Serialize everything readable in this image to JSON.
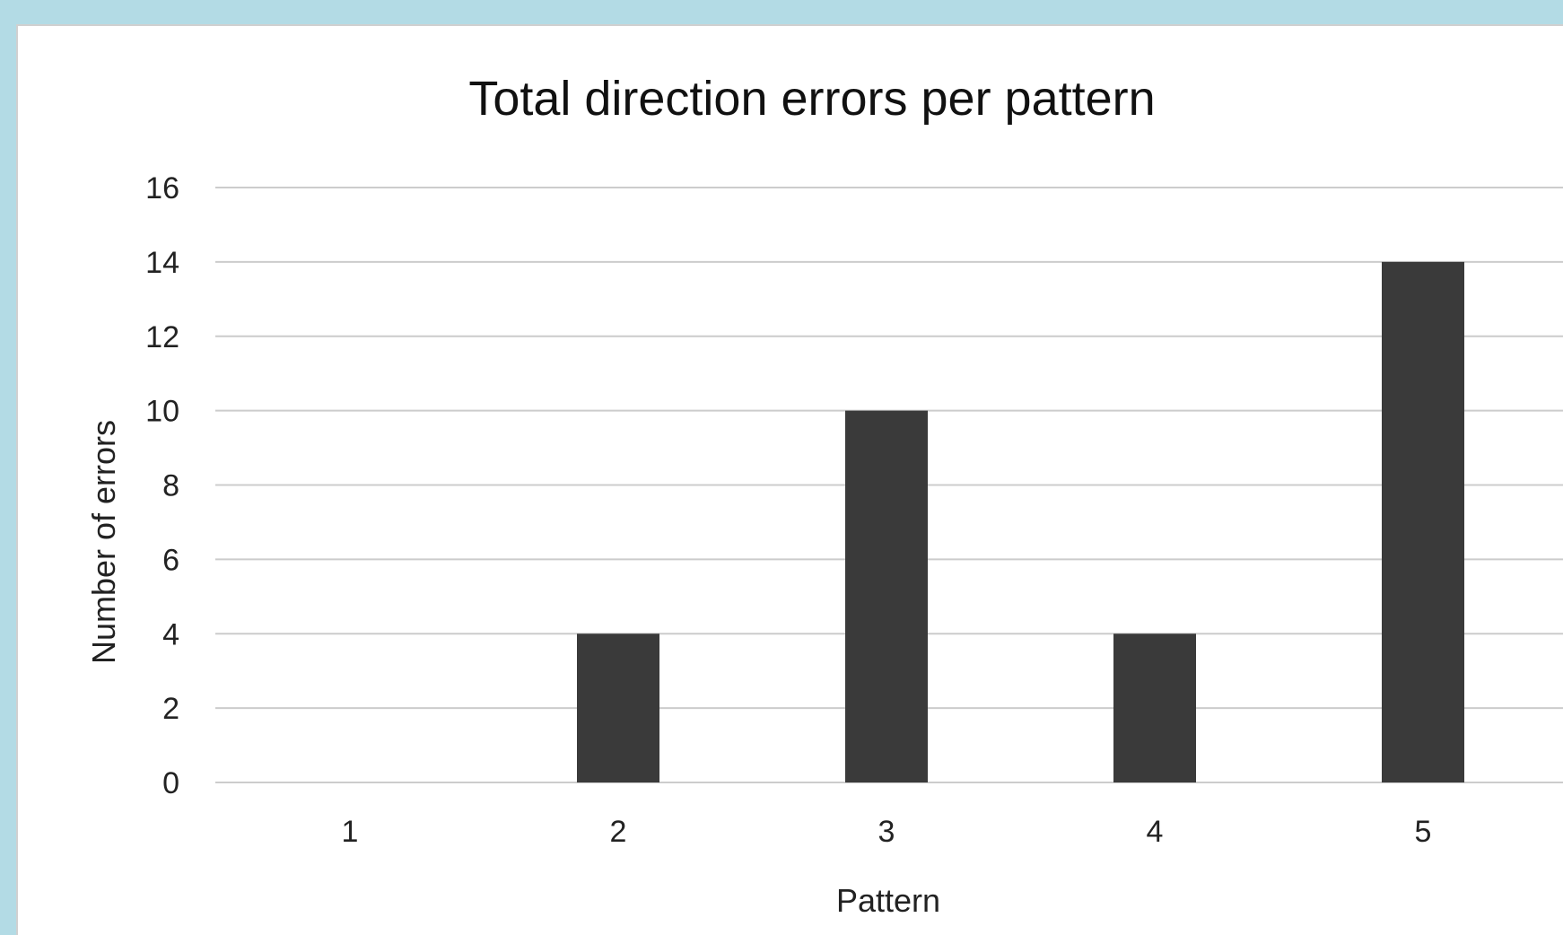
{
  "chart_data": {
    "type": "bar",
    "title": "Total direction errors per pattern",
    "xlabel": "Pattern",
    "ylabel": "Number of errors",
    "categories": [
      "1",
      "2",
      "3",
      "4",
      "5"
    ],
    "values": [
      0,
      4,
      10,
      4,
      14
    ],
    "ylim": [
      0,
      16
    ],
    "yticks": [
      0,
      2,
      4,
      6,
      8,
      10,
      12,
      14,
      16
    ],
    "grid": true,
    "legend": "none",
    "colors": {
      "bar": "#3a3a3a",
      "grid": "#cccccc",
      "background": "#ffffff",
      "frame": "#b3dbe5"
    }
  }
}
